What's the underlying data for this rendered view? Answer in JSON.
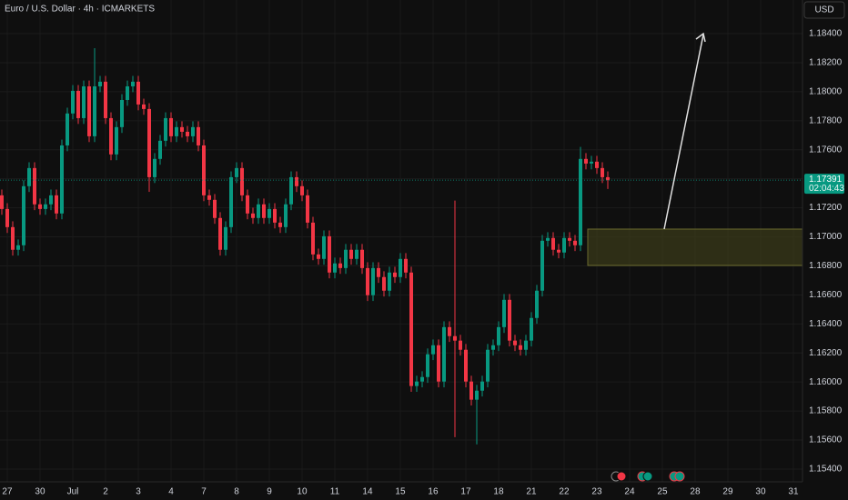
{
  "header": {
    "symbol": "Euro / U.S. Dollar · 4h · ICMARKETS",
    "currency": "USD"
  },
  "chart_data": {
    "type": "candlestick",
    "up_color": "#089981",
    "down_color": "#f23645",
    "grid": true,
    "countdown": "02:04:43",
    "x": [
      0,
      1,
      2,
      3,
      4,
      5,
      6,
      7,
      8,
      9,
      10,
      11,
      12,
      13,
      14,
      15,
      16,
      17,
      18,
      19,
      20,
      21,
      22,
      23,
      24,
      25,
      26,
      27,
      28,
      29,
      30,
      31,
      32,
      33,
      34,
      35,
      36,
      37,
      38,
      39,
      40,
      41,
      42,
      43,
      44,
      45,
      46,
      47,
      48,
      49,
      50,
      51,
      52,
      53,
      54,
      55,
      56,
      57,
      58,
      59,
      60,
      61,
      62,
      63,
      64,
      65,
      66,
      67,
      68,
      69,
      70,
      71,
      72,
      73,
      74,
      75,
      76,
      77,
      78,
      79,
      80,
      81,
      82,
      83,
      84,
      85,
      86,
      87,
      88,
      89,
      90,
      91,
      92,
      93,
      94,
      95,
      96,
      97,
      98,
      99,
      100,
      101,
      102,
      103,
      104,
      105,
      106,
      107,
      108,
      109,
      110,
      111
    ],
    "open": [
      1.17286,
      1.17192,
      1.17067,
      1.16911,
      1.16942,
      1.17349,
      1.17474,
      1.17224,
      1.17192,
      1.17224,
      1.17286,
      1.17161,
      1.1763,
      1.1785,
      1.18006,
      1.17818,
      1.18037,
      1.17693,
      1.18037,
      1.18069,
      1.17818,
      1.17568,
      1.17756,
      1.17943,
      1.18037,
      1.18069,
      1.17912,
      1.17881,
      1.17411,
      1.17537,
      1.17662,
      1.17818,
      1.17693,
      1.17756,
      1.17724,
      1.17693,
      1.17756,
      1.1763,
      1.17286,
      1.17255,
      1.1713,
      1.16911,
      1.17067,
      1.17411,
      1.17474,
      1.17286,
      1.17161,
      1.1713,
      1.17224,
      1.1713,
      1.17192,
      1.17098,
      1.17067,
      1.17224,
      1.17411,
      1.17349,
      1.17286,
      1.17098,
      1.16879,
      1.16848,
      1.17004,
      1.16754,
      1.16817,
      1.16785,
      1.16911,
      1.16848,
      1.16911,
      1.16785,
      1.16598,
      1.16785,
      1.16723,
      1.16629,
      1.16754,
      1.16723,
      1.16848,
      1.16754,
      1.15972,
      1.16003,
      1.16034,
      1.16191,
      1.16253,
      1.16003,
      1.16378,
      1.16316,
      1.16285,
      1.16222,
      1.16003,
      1.15878,
      1.1594,
      1.16003,
      1.16222,
      1.16253,
      1.16378,
      1.16566,
      1.16285,
      1.16253,
      1.16222,
      1.16285,
      1.16441,
      1.16629,
      1.16973,
      1.16992,
      1.16911,
      1.16892,
      1.16992,
      1.16973,
      1.16942,
      1.17537,
      1.17505,
      1.17518,
      1.17474,
      1.17411
    ],
    "high": [
      1.17326,
      1.17232,
      1.17107,
      1.16982,
      1.17389,
      1.17514,
      1.17514,
      1.17264,
      1.17264,
      1.17326,
      1.17326,
      1.1767,
      1.1789,
      1.18046,
      1.18046,
      1.18077,
      1.18077,
      1.183,
      1.18109,
      1.18109,
      1.17858,
      1.17796,
      1.17983,
      1.18077,
      1.18109,
      1.18109,
      1.17952,
      1.17921,
      1.17577,
      1.17702,
      1.17858,
      1.17858,
      1.17796,
      1.17796,
      1.17764,
      1.17796,
      1.17796,
      1.1767,
      1.17326,
      1.17295,
      1.1717,
      1.17107,
      1.17451,
      1.17514,
      1.17514,
      1.17326,
      1.17201,
      1.17264,
      1.17264,
      1.17232,
      1.17232,
      1.17138,
      1.17264,
      1.17451,
      1.17451,
      1.17389,
      1.17326,
      1.17138,
      1.16919,
      1.17044,
      1.17044,
      1.16857,
      1.16857,
      1.16951,
      1.16951,
      1.16951,
      1.16951,
      1.16825,
      1.16825,
      1.16825,
      1.16763,
      1.16794,
      1.16794,
      1.16888,
      1.16888,
      1.16794,
      1.16043,
      1.16074,
      1.16231,
      1.16293,
      1.16293,
      1.16418,
      1.16418,
      1.1725,
      1.16325,
      1.16262,
      1.16043,
      1.1598,
      1.16043,
      1.16262,
      1.16293,
      1.16418,
      1.16606,
      1.16606,
      1.16325,
      1.16293,
      1.16325,
      1.16481,
      1.16669,
      1.17013,
      1.17032,
      1.17032,
      1.16951,
      1.17032,
      1.17032,
      1.17013,
      1.1762,
      1.17577,
      1.17558,
      1.17558,
      1.17514,
      1.17451
    ],
    "low": [
      1.17152,
      1.17027,
      1.16871,
      1.16871,
      1.16902,
      1.17309,
      1.17184,
      1.17152,
      1.17152,
      1.17184,
      1.17121,
      1.17121,
      1.1759,
      1.1781,
      1.17778,
      1.17778,
      1.17653,
      1.17653,
      1.17997,
      1.17778,
      1.17528,
      1.17528,
      1.17716,
      1.17903,
      1.17997,
      1.17872,
      1.17841,
      1.1731,
      1.17371,
      1.17497,
      1.17622,
      1.17653,
      1.17653,
      1.17684,
      1.17653,
      1.17653,
      1.1759,
      1.17246,
      1.17215,
      1.1709,
      1.16871,
      1.16871,
      1.17027,
      1.17371,
      1.17246,
      1.17121,
      1.1709,
      1.1709,
      1.1709,
      1.1709,
      1.17058,
      1.17027,
      1.17027,
      1.17184,
      1.17309,
      1.17246,
      1.17058,
      1.16839,
      1.16808,
      1.16808,
      1.16714,
      1.16714,
      1.16745,
      1.16745,
      1.16808,
      1.16808,
      1.16745,
      1.16558,
      1.16558,
      1.16683,
      1.16589,
      1.16589,
      1.16683,
      1.16683,
      1.16714,
      1.15932,
      1.15932,
      1.15963,
      1.15994,
      1.16151,
      1.15963,
      1.15963,
      1.16276,
      1.1562,
      1.16182,
      1.15963,
      1.15838,
      1.1557,
      1.159,
      1.15963,
      1.16182,
      1.16213,
      1.16338,
      1.16245,
      1.16213,
      1.16182,
      1.16182,
      1.16245,
      1.16401,
      1.16589,
      1.16933,
      1.16871,
      1.16852,
      1.16852,
      1.16933,
      1.16902,
      1.16902,
      1.17465,
      1.17465,
      1.17434,
      1.17371,
      1.1733
    ],
    "close": [
      1.17192,
      1.17067,
      1.16911,
      1.16942,
      1.17349,
      1.17474,
      1.17224,
      1.17192,
      1.17224,
      1.17286,
      1.17161,
      1.1763,
      1.1785,
      1.18006,
      1.17818,
      1.18037,
      1.17693,
      1.18037,
      1.18069,
      1.17818,
      1.17568,
      1.17756,
      1.17943,
      1.18037,
      1.18069,
      1.17912,
      1.17881,
      1.17411,
      1.17537,
      1.17662,
      1.17818,
      1.17693,
      1.17756,
      1.17724,
      1.17693,
      1.17756,
      1.1763,
      1.17286,
      1.17255,
      1.1713,
      1.16911,
      1.17067,
      1.17411,
      1.17474,
      1.17286,
      1.17161,
      1.1713,
      1.17224,
      1.1713,
      1.17192,
      1.17098,
      1.17067,
      1.17224,
      1.17411,
      1.17349,
      1.17286,
      1.17098,
      1.16879,
      1.16848,
      1.17004,
      1.16754,
      1.16817,
      1.16785,
      1.16911,
      1.16848,
      1.16911,
      1.16785,
      1.16598,
      1.16785,
      1.16723,
      1.16629,
      1.16754,
      1.16723,
      1.16848,
      1.16754,
      1.15972,
      1.16003,
      1.16034,
      1.16191,
      1.16253,
      1.16003,
      1.16378,
      1.16316,
      1.16285,
      1.16222,
      1.16003,
      1.15878,
      1.1594,
      1.16003,
      1.16222,
      1.16253,
      1.16378,
      1.16566,
      1.16285,
      1.16253,
      1.16222,
      1.16285,
      1.16441,
      1.16629,
      1.16973,
      1.16992,
      1.16911,
      1.16892,
      1.16992,
      1.16973,
      1.16942,
      1.17537,
      1.17505,
      1.17518,
      1.17474,
      1.17411,
      1.17391
    ],
    "xlim": [
      -0.333,
      146.667
    ],
    "xticks": [
      {
        "value": 1,
        "label": "27"
      },
      {
        "value": 7,
        "label": "30"
      },
      {
        "value": 13,
        "label": "Jul"
      },
      {
        "value": 19,
        "label": "2"
      },
      {
        "value": 25,
        "label": "3"
      },
      {
        "value": 31,
        "label": "4"
      },
      {
        "value": 37,
        "label": "7"
      },
      {
        "value": 43,
        "label": "8"
      },
      {
        "value": 49,
        "label": "9"
      },
      {
        "value": 55,
        "label": "10"
      },
      {
        "value": 61,
        "label": "11"
      },
      {
        "value": 67,
        "label": "14"
      },
      {
        "value": 73,
        "label": "15"
      },
      {
        "value": 79,
        "label": "16"
      },
      {
        "value": 85,
        "label": "17"
      },
      {
        "value": 91,
        "label": "18"
      },
      {
        "value": 97,
        "label": "21"
      },
      {
        "value": 103,
        "label": "22"
      },
      {
        "value": 109,
        "label": "23"
      },
      {
        "value": 115,
        "label": "24"
      },
      {
        "value": 121,
        "label": "25"
      },
      {
        "value": 127,
        "label": "28"
      },
      {
        "value": 133,
        "label": "29"
      },
      {
        "value": 139,
        "label": "30"
      },
      {
        "value": 145,
        "label": "31"
      }
    ],
    "ylim": [
      1.15312,
      1.18632
    ],
    "yticks": [
      {
        "value": 1.184,
        "label": "1.18400"
      },
      {
        "value": 1.182,
        "label": "1.18200"
      },
      {
        "value": 1.18,
        "label": "1.18000"
      },
      {
        "value": 1.178,
        "label": "1.17800"
      },
      {
        "value": 1.176,
        "label": "1.17600"
      },
      {
        "value": 1.174,
        "label": "1.17400"
      },
      {
        "value": 1.172,
        "label": "1.17200"
      },
      {
        "value": 1.17,
        "label": "1.17000"
      },
      {
        "value": 1.168,
        "label": "1.16800"
      },
      {
        "value": 1.166,
        "label": "1.16600"
      },
      {
        "value": 1.164,
        "label": "1.16400"
      },
      {
        "value": 1.162,
        "label": "1.16200"
      },
      {
        "value": 1.16,
        "label": "1.16000"
      },
      {
        "value": 1.158,
        "label": "1.15800"
      },
      {
        "value": 1.156,
        "label": "1.15600"
      },
      {
        "value": 1.154,
        "label": "1.15400"
      }
    ]
  }
}
